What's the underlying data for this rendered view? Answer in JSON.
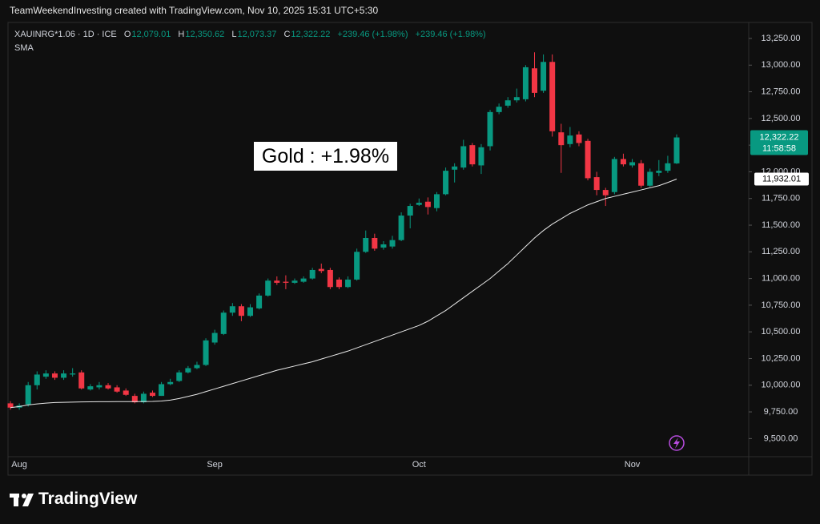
{
  "chart_data": {
    "type": "candlestick",
    "title": "TeamWeekendInvesting created with TradingView.com, Nov 10, 2025 15:31 UTC+5:30",
    "brand": "TradingView",
    "annotation": "Gold : +1.98%",
    "legend": {
      "symbol": "XAUINRG*1.06 · 1D · ICE",
      "ohlc": [
        {
          "name": "O",
          "value": 12079.01,
          "label": "12,079.01"
        },
        {
          "name": "H",
          "value": 12350.62,
          "label": "12,350.62"
        },
        {
          "name": "L",
          "value": 12073.37,
          "label": "12,073.37"
        },
        {
          "name": "C",
          "value": 12322.22,
          "label": "12,322.22"
        }
      ],
      "changes": [
        "+239.46 (+1.98%)",
        "+239.46 (+1.98%)"
      ]
    },
    "up_color": "#089981",
    "down_color": "#f23645",
    "categories": [
      null,
      "Aug",
      null,
      null,
      null,
      null,
      null,
      null,
      null,
      null,
      null,
      null,
      null,
      null,
      null,
      null,
      null,
      null,
      null,
      null,
      null,
      null,
      null,
      "Sep",
      null,
      null,
      null,
      null,
      null,
      null,
      null,
      null,
      null,
      null,
      null,
      null,
      null,
      null,
      null,
      null,
      null,
      null,
      null,
      null,
      null,
      null,
      "Oct",
      null,
      null,
      null,
      null,
      null,
      null,
      null,
      null,
      null,
      null,
      null,
      null,
      null,
      null,
      null,
      null,
      null,
      null,
      null,
      null,
      null,
      null,
      null,
      "Nov",
      null,
      null,
      null,
      null,
      null
    ],
    "open": [
      9830,
      9790,
      9820,
      10000,
      10080,
      10110,
      10070,
      10100,
      10120,
      9960,
      9980,
      10000,
      9980,
      9950,
      9900,
      9840,
      9930,
      9900,
      10010,
      10040,
      10120,
      10160,
      10190,
      10400,
      10480,
      10680,
      10740,
      10650,
      10720,
      10840,
      10980,
      10970,
      10960,
      10970,
      11000,
      11090,
      11080,
      10990,
      10920,
      10990,
      11250,
      11380,
      11290,
      11300,
      11360,
      11590,
      11690,
      11720,
      11660,
      11790,
      12020,
      12040,
      12250,
      12060,
      12240,
      12560,
      12620,
      12670,
      12680,
      12970,
      12760,
      13030,
      12370,
      12260,
      12350,
      12290,
      11950,
      11830,
      11810,
      12120,
      12060,
      12080,
      11870,
      11990,
      12010,
      12079.01
    ],
    "high": [
      9850,
      9830,
      10030,
      10130,
      10140,
      10130,
      10140,
      10160,
      10140,
      10010,
      10030,
      10020,
      10000,
      9970,
      9920,
      9940,
      9950,
      10030,
      10060,
      10140,
      10180,
      10220,
      10440,
      10520,
      10700,
      10770,
      10760,
      10760,
      10860,
      11000,
      11020,
      11030,
      11000,
      11020,
      11100,
      11140,
      11100,
      11010,
      11020,
      11280,
      11450,
      11420,
      11350,
      11400,
      11620,
      11700,
      11750,
      11760,
      11810,
      12040,
      12080,
      12300,
      12270,
      12260,
      12580,
      12640,
      12700,
      12780,
      13000,
      13120,
      13100,
      13100,
      12450,
      12420,
      12380,
      12310,
      12000,
      11850,
      12140,
      12170,
      12120,
      12110,
      12030,
      12110,
      12150,
      12350.62
    ],
    "low": [
      9770,
      9770,
      9800,
      9960,
      10060,
      10050,
      10050,
      10080,
      9960,
      9950,
      9960,
      9960,
      9930,
      9900,
      9830,
      9830,
      9890,
      9900,
      10000,
      10030,
      10110,
      10150,
      10180,
      10380,
      10470,
      10650,
      10600,
      10640,
      10710,
      10830,
      10940,
      10900,
      10950,
      10960,
      10990,
      11050,
      10900,
      10900,
      10910,
      10980,
      11240,
      11260,
      11270,
      11280,
      11350,
      11470,
      11680,
      11600,
      11630,
      11780,
      11900,
      12020,
      12050,
      11980,
      12200,
      12540,
      12600,
      12650,
      12660,
      12700,
      12740,
      12330,
      11990,
      12230,
      12240,
      11920,
      11780,
      11680,
      11790,
      12050,
      12040,
      11850,
      11860,
      11960,
      11990,
      12073.37
    ],
    "close": [
      9790,
      9810,
      10000,
      10100,
      10110,
      10070,
      10110,
      10110,
      9970,
      9990,
      10000,
      9970,
      9940,
      9910,
      9840,
      9920,
      9900,
      10010,
      10030,
      10120,
      10160,
      10190,
      10420,
      10490,
      10680,
      10740,
      10650,
      10730,
      10840,
      10980,
      10960,
      10960,
      10980,
      11000,
      11080,
      11070,
      10920,
      10920,
      10990,
      11250,
      11380,
      11280,
      11320,
      11360,
      11590,
      11680,
      11710,
      11670,
      11790,
      12010,
      12050,
      12240,
      12070,
      12230,
      12560,
      12610,
      12670,
      12700,
      12980,
      12740,
      13030,
      12380,
      12250,
      12340,
      12270,
      11940,
      11830,
      11780,
      12120,
      12070,
      12090,
      11870,
      12000,
      12010,
      12080,
      12322.22
    ],
    "sma": {
      "name": "SMA",
      "color": "#e8e8e8",
      "values": [
        9790,
        9800,
        9815,
        9825,
        9832,
        9838,
        9840,
        9842,
        9843,
        9844,
        9845,
        9845,
        9846,
        9846,
        9846,
        9847,
        9848,
        9852,
        9860,
        9875,
        9895,
        9915,
        9940,
        9965,
        9990,
        10015,
        10040,
        10065,
        10090,
        10115,
        10140,
        10160,
        10180,
        10200,
        10220,
        10245,
        10270,
        10295,
        10320,
        10350,
        10380,
        10410,
        10440,
        10470,
        10500,
        10530,
        10560,
        10600,
        10650,
        10700,
        10760,
        10820,
        10880,
        10940,
        11000,
        11070,
        11140,
        11220,
        11300,
        11380,
        11450,
        11510,
        11560,
        11610,
        11650,
        11690,
        11720,
        11750,
        11770,
        11790,
        11810,
        11830,
        11850,
        11870,
        11900,
        11932.01
      ]
    },
    "last_price": {
      "value": 12322.22,
      "label": "12,322.22",
      "countdown": "11:58:58"
    },
    "sma_last": {
      "value": 11932.01,
      "label": "11,932.01"
    },
    "ylim": [
      9330,
      13400
    ],
    "yticks": [
      {
        "value": 9500,
        "label": "9,500.00"
      },
      {
        "value": 9750,
        "label": "9,750.00"
      },
      {
        "value": 10000,
        "label": "10,000.00"
      },
      {
        "value": 10250,
        "label": "10,250.00"
      },
      {
        "value": 10500,
        "label": "10,500.00"
      },
      {
        "value": 10750,
        "label": "10,750.00"
      },
      {
        "value": 11000,
        "label": "11,000.00"
      },
      {
        "value": 11250,
        "label": "11,250.00"
      },
      {
        "value": 11500,
        "label": "11,500.00"
      },
      {
        "value": 11750,
        "label": "11,750.00"
      },
      {
        "value": 12000,
        "label": "12,000.00"
      },
      {
        "value": 12250,
        "label": "12,250.00"
      },
      {
        "value": 12500,
        "label": "12,500.00"
      },
      {
        "value": 12750,
        "label": "12,750.00"
      },
      {
        "value": 13000,
        "label": "13,000.00"
      },
      {
        "value": 13250,
        "label": "13,250.00"
      }
    ],
    "grid": false
  }
}
